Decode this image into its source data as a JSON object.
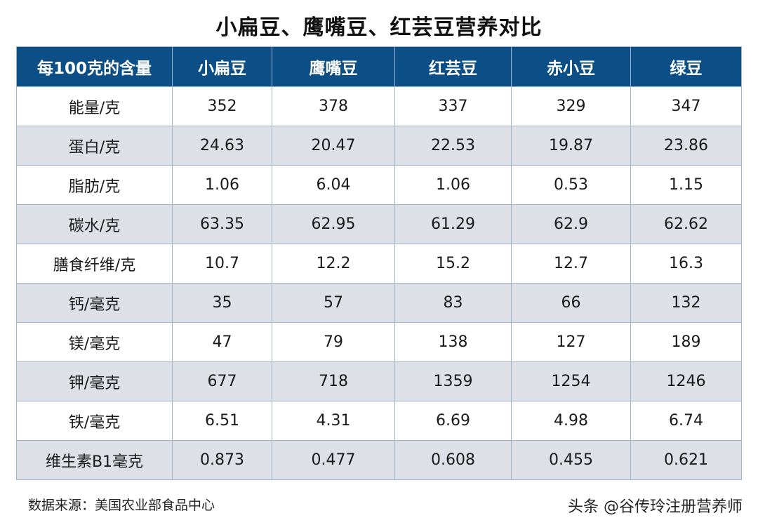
{
  "title": "小扁豆、鹰嘴豆、红芸豆营养对比",
  "table": {
    "headers": [
      "每100克的含量",
      "小扁豆",
      "鹰嘴豆",
      "红芸豆",
      "赤小豆",
      "绿豆"
    ],
    "rows": [
      [
        "能量/克",
        "352",
        "378",
        "337",
        "329",
        "347"
      ],
      [
        "蛋白/克",
        "24.63",
        "20.47",
        "22.53",
        "19.87",
        "23.86"
      ],
      [
        "脂肪/克",
        "1.06",
        "6.04",
        "1.06",
        "0.53",
        "1.15"
      ],
      [
        "碳水/克",
        "63.35",
        "62.95",
        "61.29",
        "62.9",
        "62.62"
      ],
      [
        "膳食纤维/克",
        "10.7",
        "12.2",
        "15.2",
        "12.7",
        "16.3"
      ],
      [
        "钙/毫克",
        "35",
        "57",
        "83",
        "66",
        "132"
      ],
      [
        "镁/毫克",
        "47",
        "79",
        "138",
        "127",
        "189"
      ],
      [
        "钾/毫克",
        "677",
        "718",
        "1359",
        "1254",
        "1246"
      ],
      [
        "铁/毫克",
        "6.51",
        "4.31",
        "6.69",
        "4.98",
        "6.74"
      ],
      [
        "维生素B1毫克",
        "0.873",
        "0.477",
        "0.608",
        "0.455",
        "0.621"
      ]
    ]
  },
  "source": "数据来源：美国农业部食品中心",
  "watermark": "头条 @谷传玲注册营养师"
}
